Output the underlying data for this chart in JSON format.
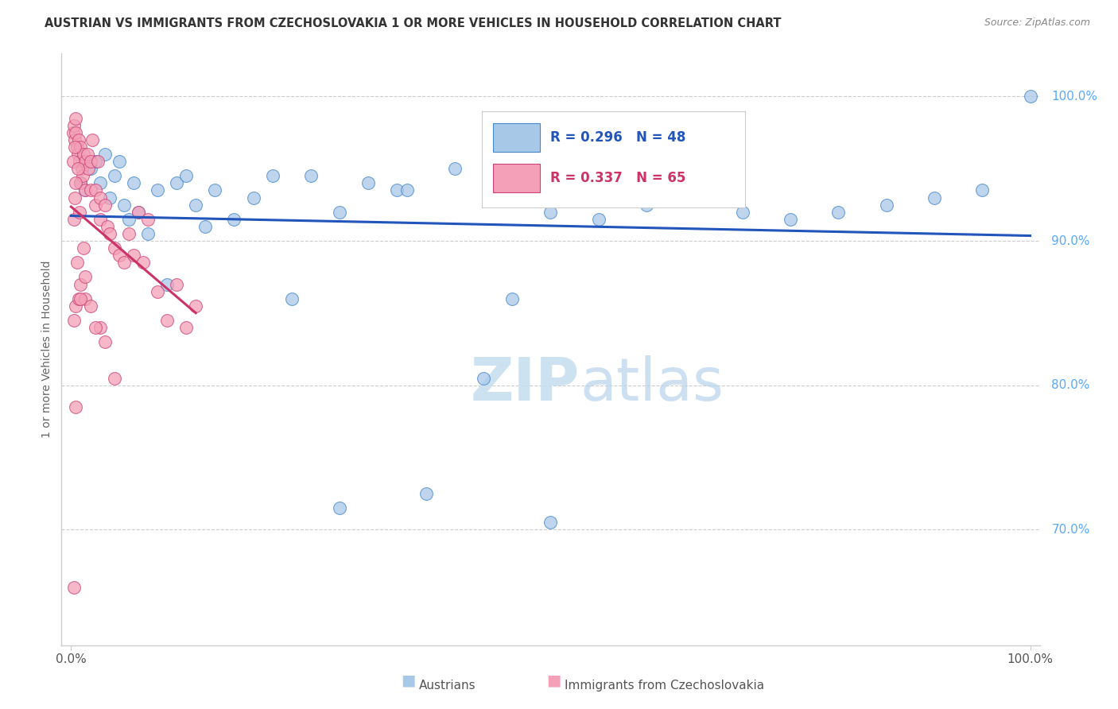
{
  "title": "AUSTRIAN VS IMMIGRANTS FROM CZECHOSLOVAKIA 1 OR MORE VEHICLES IN HOUSEHOLD CORRELATION CHART",
  "source": "Source: ZipAtlas.com",
  "ylabel": "1 or more Vehicles in Household",
  "R_austrians": 0.296,
  "N_austrians": 48,
  "R_immigrants": 0.337,
  "N_immigrants": 65,
  "color_austrians_fill": "#a8c8e8",
  "color_austrians_edge": "#4488cc",
  "color_immigrants_fill": "#f4a0b8",
  "color_immigrants_edge": "#cc4477",
  "color_line_austrians": "#2255bb",
  "color_line_immigrants": "#cc3366",
  "background_color": "#ffffff",
  "watermark_color": "#d8eaf8",
  "ytick_color": "#55aaff",
  "grid_color": "#cccccc",
  "title_color": "#333333",
  "source_color": "#888888",
  "legend1_label": "Austrians",
  "legend2_label": "Immigrants from Czechoslovakia",
  "austrians_x": [
    1.0,
    1.5,
    2.0,
    2.5,
    3.0,
    3.5,
    4.0,
    4.5,
    5.0,
    5.5,
    6.0,
    6.5,
    7.0,
    8.0,
    9.0,
    10.0,
    11.0,
    12.0,
    13.0,
    14.0,
    15.0,
    17.0,
    19.0,
    21.0,
    23.0,
    25.0,
    28.0,
    31.0,
    34.0,
    37.0,
    40.0,
    43.0,
    46.0,
    50.0,
    55.0,
    60.0,
    65.0,
    70.0,
    75.0,
    80.0,
    85.0,
    90.0,
    95.0,
    100.0,
    28.0,
    35.0,
    50.0,
    65.0
  ],
  "austrians_y": [
    94.0,
    93.5,
    95.0,
    95.5,
    94.0,
    96.0,
    93.0,
    94.5,
    95.5,
    92.5,
    91.5,
    94.0,
    92.0,
    90.5,
    93.5,
    87.0,
    94.0,
    94.5,
    92.5,
    91.0,
    93.5,
    91.5,
    93.0,
    94.5,
    86.0,
    94.5,
    92.0,
    94.0,
    93.5,
    72.5,
    95.0,
    80.5,
    86.0,
    92.0,
    91.5,
    92.5,
    93.0,
    92.0,
    91.5,
    92.0,
    92.5,
    93.0,
    93.5,
    100.0,
    71.5,
    93.5,
    70.5,
    93.0
  ],
  "immigrants_x": [
    0.2,
    0.3,
    0.4,
    0.5,
    0.5,
    0.6,
    0.7,
    0.8,
    0.9,
    1.0,
    1.0,
    1.1,
    1.2,
    1.3,
    1.5,
    1.5,
    1.7,
    1.8,
    2.0,
    2.0,
    2.2,
    2.5,
    2.5,
    2.8,
    3.0,
    3.0,
    3.5,
    3.8,
    4.0,
    4.5,
    5.0,
    5.5,
    6.0,
    6.5,
    7.0,
    7.5,
    8.0,
    9.0,
    10.0,
    11.0,
    12.0,
    13.0,
    0.3,
    0.5,
    0.8,
    1.0,
    1.5,
    2.0,
    3.0,
    4.5,
    0.4,
    0.6,
    0.4,
    0.3,
    0.2,
    0.5,
    1.0,
    1.5,
    0.7,
    0.9,
    1.3,
    2.5,
    3.5,
    0.3,
    0.5
  ],
  "immigrants_y": [
    97.5,
    98.0,
    97.0,
    97.5,
    98.5,
    96.5,
    96.0,
    97.0,
    95.5,
    94.0,
    96.5,
    95.0,
    94.5,
    96.0,
    95.5,
    93.5,
    96.0,
    95.0,
    93.5,
    95.5,
    97.0,
    92.5,
    93.5,
    95.5,
    91.5,
    93.0,
    92.5,
    91.0,
    90.5,
    89.5,
    89.0,
    88.5,
    90.5,
    89.0,
    92.0,
    88.5,
    91.5,
    86.5,
    84.5,
    87.0,
    84.0,
    85.5,
    84.5,
    85.5,
    86.0,
    87.0,
    86.0,
    85.5,
    84.0,
    80.5,
    93.0,
    88.5,
    96.5,
    91.5,
    95.5,
    94.0,
    86.0,
    87.5,
    95.0,
    92.0,
    89.5,
    84.0,
    83.0,
    66.0,
    78.5
  ]
}
